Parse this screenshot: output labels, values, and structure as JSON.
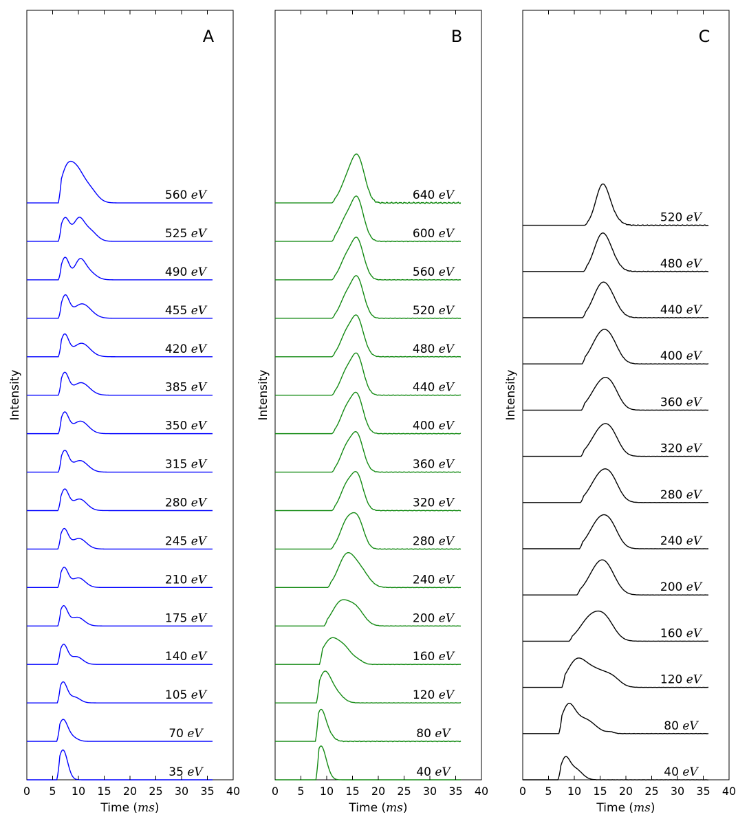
{
  "chart_data": [
    {
      "panel": "A",
      "type": "line",
      "color": "#0000ff",
      "xlabel": "Time",
      "xunit": "ms",
      "ylabel": "Intensity",
      "xlim": [
        0,
        40
      ],
      "xticks": [
        0,
        5,
        10,
        15,
        20,
        25,
        30,
        35,
        40
      ],
      "trace_end": 36,
      "unit_label": "eV",
      "series": [
        {
          "name": "35",
          "onset": 5.8,
          "peaks": [
            {
              "t": 7.0,
              "a": 3.1,
              "w": 0.9
            }
          ],
          "tail": 0.0
        },
        {
          "name": "70",
          "onset": 5.8,
          "peaks": [
            {
              "t": 7.0,
              "a": 2.2,
              "w": 0.9
            },
            {
              "t": 8.8,
              "a": 0.4,
              "w": 1.0
            }
          ],
          "tail": 0.0
        },
        {
          "name": "105",
          "onset": 5.9,
          "peaks": [
            {
              "t": 7.0,
              "a": 2.1,
              "w": 0.8
            },
            {
              "t": 9.2,
              "a": 0.6,
              "w": 1.1
            }
          ],
          "tail": 0.0
        },
        {
          "name": "140",
          "onset": 5.9,
          "peaks": [
            {
              "t": 7.1,
              "a": 2.0,
              "w": 0.8
            },
            {
              "t": 9.6,
              "a": 0.8,
              "w": 1.2
            }
          ],
          "tail": 0.0
        },
        {
          "name": "175",
          "onset": 6.0,
          "peaks": [
            {
              "t": 7.1,
              "a": 2.0,
              "w": 0.8
            },
            {
              "t": 9.8,
              "a": 0.9,
              "w": 1.3
            }
          ],
          "tail": 0.0
        },
        {
          "name": "210",
          "onset": 6.0,
          "peaks": [
            {
              "t": 7.2,
              "a": 2.0,
              "w": 0.8
            },
            {
              "t": 10.0,
              "a": 1.0,
              "w": 1.3
            }
          ],
          "tail": 0.0
        },
        {
          "name": "245",
          "onset": 6.0,
          "peaks": [
            {
              "t": 7.2,
              "a": 2.0,
              "w": 0.8
            },
            {
              "t": 10.1,
              "a": 1.1,
              "w": 1.4
            }
          ],
          "tail": 0.0
        },
        {
          "name": "280",
          "onset": 6.0,
          "peaks": [
            {
              "t": 7.3,
              "a": 2.1,
              "w": 0.8
            },
            {
              "t": 10.2,
              "a": 1.2,
              "w": 1.4
            }
          ],
          "tail": 0.0
        },
        {
          "name": "315",
          "onset": 6.1,
          "peaks": [
            {
              "t": 7.3,
              "a": 2.1,
              "w": 0.8
            },
            {
              "t": 10.3,
              "a": 1.2,
              "w": 1.5
            }
          ],
          "tail": 0.0
        },
        {
          "name": "350",
          "onset": 6.1,
          "peaks": [
            {
              "t": 7.3,
              "a": 2.1,
              "w": 0.8
            },
            {
              "t": 10.4,
              "a": 1.3,
              "w": 1.5
            }
          ],
          "tail": 0.0
        },
        {
          "name": "385",
          "onset": 6.1,
          "peaks": [
            {
              "t": 7.3,
              "a": 2.2,
              "w": 0.8
            },
            {
              "t": 10.5,
              "a": 1.3,
              "w": 1.6
            }
          ],
          "tail": 0.0
        },
        {
          "name": "420",
          "onset": 6.1,
          "peaks": [
            {
              "t": 7.3,
              "a": 2.2,
              "w": 0.8
            },
            {
              "t": 10.6,
              "a": 1.4,
              "w": 1.6
            }
          ],
          "tail": 0.0
        },
        {
          "name": "455",
          "onset": 6.1,
          "peaks": [
            {
              "t": 7.4,
              "a": 2.2,
              "w": 0.8
            },
            {
              "t": 10.7,
              "a": 1.5,
              "w": 1.7
            }
          ],
          "tail": 0.0
        },
        {
          "name": "490",
          "onset": 6.1,
          "peaks": [
            {
              "t": 7.4,
              "a": 2.3,
              "w": 0.8
            },
            {
              "t": 10.2,
              "a": 1.7,
              "w": 1.0
            },
            {
              "t": 11.8,
              "a": 0.9,
              "w": 1.4
            }
          ],
          "tail": 0.0
        },
        {
          "name": "525",
          "onset": 6.1,
          "peaks": [
            {
              "t": 7.4,
              "a": 2.4,
              "w": 0.9
            },
            {
              "t": 10.0,
              "a": 2.0,
              "w": 1.0
            },
            {
              "t": 12.0,
              "a": 1.2,
              "w": 1.4
            }
          ],
          "tail": 0.0
        },
        {
          "name": "560",
          "onset": 6.1,
          "peaks": [
            {
              "t": 7.6,
              "a": 3.0,
              "w": 1.2
            },
            {
              "t": 9.6,
              "a": 2.8,
              "w": 1.3
            },
            {
              "t": 12.0,
              "a": 1.5,
              "w": 1.5
            }
          ],
          "tail": 0.0
        }
      ]
    },
    {
      "panel": "B",
      "type": "line",
      "color": "#138a13",
      "xlabel": "Time",
      "xunit": "ms",
      "ylabel": "Intensity",
      "xlim": [
        0,
        40
      ],
      "xticks": [
        0,
        5,
        10,
        15,
        20,
        25,
        30,
        35,
        40
      ],
      "trace_end": 36,
      "unit_label": "eV",
      "series": [
        {
          "name": "40",
          "onset": 7.9,
          "peaks": [
            {
              "t": 8.8,
              "a": 3.3,
              "w": 0.9
            },
            {
              "t": 10.0,
              "a": 0.6,
              "w": 0.8
            }
          ],
          "tail": 0.0
        },
        {
          "name": "80",
          "onset": 7.8,
          "peaks": [
            {
              "t": 8.8,
              "a": 3.0,
              "w": 0.9
            },
            {
              "t": 10.2,
              "a": 0.8,
              "w": 1.0
            }
          ],
          "tail": 0.04
        },
        {
          "name": "120",
          "onset": 8.0,
          "peaks": [
            {
              "t": 9.5,
              "a": 2.9,
              "w": 1.2
            },
            {
              "t": 11.6,
              "a": 1.1,
              "w": 1.4
            }
          ],
          "tail": 0.02
        },
        {
          "name": "160",
          "onset": 8.6,
          "peaks": [
            {
              "t": 11.0,
              "a": 2.7,
              "w": 1.8
            },
            {
              "t": 13.8,
              "a": 1.0,
              "w": 1.2
            },
            {
              "t": 16.0,
              "a": 0.4,
              "w": 1.0
            }
          ],
          "tail": 0.02
        },
        {
          "name": "200",
          "onset": 9.5,
          "peaks": [
            {
              "t": 12.6,
              "a": 2.3,
              "w": 1.6
            },
            {
              "t": 15.6,
              "a": 1.8,
              "w": 1.6
            }
          ],
          "tail": 0.02
        },
        {
          "name": "240",
          "onset": 10.2,
          "peaks": [
            {
              "t": 13.8,
              "a": 3.2,
              "w": 1.6
            },
            {
              "t": 16.6,
              "a": 1.6,
              "w": 1.6
            }
          ],
          "tail": 0.02
        },
        {
          "name": "280",
          "onset": 10.8,
          "peaks": [
            {
              "t": 13.9,
              "a": 2.8,
              "w": 1.3
            },
            {
              "t": 15.9,
              "a": 2.4,
              "w": 1.1
            },
            {
              "t": 17.0,
              "a": 0.6,
              "w": 1.0
            }
          ],
          "tail": 0.03
        },
        {
          "name": "320",
          "onset": 11.0,
          "peaks": [
            {
              "t": 14.0,
              "a": 2.7,
              "w": 1.3
            },
            {
              "t": 15.9,
              "a": 2.6,
              "w": 1.0
            },
            {
              "t": 17.0,
              "a": 0.8,
              "w": 1.0
            }
          ],
          "tail": 0.03
        },
        {
          "name": "360",
          "onset": 11.0,
          "peaks": [
            {
              "t": 14.0,
              "a": 2.7,
              "w": 1.3
            },
            {
              "t": 15.9,
              "a": 2.8,
              "w": 1.0
            },
            {
              "t": 17.1,
              "a": 0.8,
              "w": 1.0
            }
          ],
          "tail": 0.03
        },
        {
          "name": "400",
          "onset": 11.0,
          "peaks": [
            {
              "t": 14.0,
              "a": 2.7,
              "w": 1.3
            },
            {
              "t": 15.9,
              "a": 2.9,
              "w": 1.0
            },
            {
              "t": 17.1,
              "a": 0.8,
              "w": 1.0
            }
          ],
          "tail": 0.03
        },
        {
          "name": "440",
          "onset": 11.0,
          "peaks": [
            {
              "t": 14.0,
              "a": 2.6,
              "w": 1.3
            },
            {
              "t": 15.9,
              "a": 3.0,
              "w": 1.0
            },
            {
              "t": 17.1,
              "a": 0.9,
              "w": 1.0
            }
          ],
          "tail": 0.03
        },
        {
          "name": "480",
          "onset": 11.0,
          "peaks": [
            {
              "t": 14.0,
              "a": 2.6,
              "w": 1.3
            },
            {
              "t": 15.9,
              "a": 3.0,
              "w": 1.0
            },
            {
              "t": 17.2,
              "a": 0.9,
              "w": 1.0
            }
          ],
          "tail": 0.03
        },
        {
          "name": "520",
          "onset": 11.0,
          "peaks": [
            {
              "t": 14.0,
              "a": 2.5,
              "w": 1.3
            },
            {
              "t": 15.9,
              "a": 3.1,
              "w": 1.0
            },
            {
              "t": 17.2,
              "a": 1.0,
              "w": 1.0
            }
          ],
          "tail": 0.03
        },
        {
          "name": "560",
          "onset": 11.0,
          "peaks": [
            {
              "t": 14.0,
              "a": 2.5,
              "w": 1.3
            },
            {
              "t": 15.9,
              "a": 3.1,
              "w": 1.0
            },
            {
              "t": 17.2,
              "a": 1.0,
              "w": 1.0
            }
          ],
          "tail": 0.03
        },
        {
          "name": "600",
          "onset": 11.0,
          "peaks": [
            {
              "t": 14.0,
              "a": 2.6,
              "w": 1.4
            },
            {
              "t": 15.9,
              "a": 3.2,
              "w": 1.0
            },
            {
              "t": 17.2,
              "a": 1.0,
              "w": 1.0
            }
          ],
          "tail": 0.04
        },
        {
          "name": "640",
          "onset": 11.0,
          "peaks": [
            {
              "t": 14.2,
              "a": 2.6,
              "w": 1.4
            },
            {
              "t": 16.0,
              "a": 3.5,
              "w": 1.1
            },
            {
              "t": 17.4,
              "a": 1.0,
              "w": 1.0
            }
          ],
          "tail": 0.08
        }
      ]
    },
    {
      "panel": "C",
      "type": "line",
      "color": "#000000",
      "xlabel": "Time",
      "xunit": "ms",
      "ylabel": "Intensity",
      "xlim": [
        0,
        40
      ],
      "xticks": [
        0,
        5,
        10,
        15,
        20,
        25,
        30,
        35,
        40
      ],
      "trace_end": 36,
      "unit_label": "eV",
      "series": [
        {
          "name": "40",
          "onset": 6.8,
          "peaks": [
            {
              "t": 8.2,
              "a": 2.2,
              "w": 0.9
            },
            {
              "t": 10.2,
              "a": 1.2,
              "w": 1.3
            }
          ],
          "tail": 0.01
        },
        {
          "name": "80",
          "onset": 7.0,
          "peaks": [
            {
              "t": 8.8,
              "a": 2.9,
              "w": 1.3
            },
            {
              "t": 12.0,
              "a": 1.6,
              "w": 2.0
            },
            {
              "t": 17.0,
              "a": 0.15,
              "w": 0.7
            }
          ],
          "tail": 0.02
        },
        {
          "name": "120",
          "onset": 7.6,
          "peaks": [
            {
              "t": 10.3,
              "a": 2.6,
              "w": 1.8
            },
            {
              "t": 14.0,
              "a": 1.9,
              "w": 2.4
            },
            {
              "t": 17.5,
              "a": 0.7,
              "w": 1.5
            }
          ],
          "tail": 0.01
        },
        {
          "name": "160",
          "onset": 9.0,
          "peaks": [
            {
              "t": 13.0,
              "a": 2.4,
              "w": 2.0
            },
            {
              "t": 16.0,
              "a": 2.2,
              "w": 1.8
            }
          ],
          "tail": 0.01
        },
        {
          "name": "200",
          "onset": 10.5,
          "peaks": [
            {
              "t": 14.5,
              "a": 2.6,
              "w": 2.0
            },
            {
              "t": 16.5,
              "a": 1.9,
              "w": 1.8
            }
          ],
          "tail": 0.01
        },
        {
          "name": "240",
          "onset": 11.0,
          "peaks": [
            {
              "t": 15.0,
              "a": 3.2,
              "w": 2.0
            },
            {
              "t": 17.3,
              "a": 1.4,
              "w": 1.5
            }
          ],
          "tail": 0.01
        },
        {
          "name": "280",
          "onset": 11.2,
          "peaks": [
            {
              "t": 15.2,
              "a": 3.1,
              "w": 2.0
            },
            {
              "t": 17.4,
              "a": 1.4,
              "w": 1.5
            }
          ],
          "tail": 0.01
        },
        {
          "name": "320",
          "onset": 11.3,
          "peaks": [
            {
              "t": 15.3,
              "a": 3.0,
              "w": 2.0
            },
            {
              "t": 17.4,
              "a": 1.3,
              "w": 1.5
            }
          ],
          "tail": 0.01
        },
        {
          "name": "360",
          "onset": 11.4,
          "peaks": [
            {
              "t": 15.3,
              "a": 3.0,
              "w": 2.0
            },
            {
              "t": 17.4,
              "a": 1.3,
              "w": 1.5
            }
          ],
          "tail": 0.01
        },
        {
          "name": "400",
          "onset": 11.5,
          "peaks": [
            {
              "t": 15.3,
              "a": 3.3,
              "w": 1.9
            },
            {
              "t": 17.4,
              "a": 1.2,
              "w": 1.5
            }
          ],
          "tail": 0.02
        },
        {
          "name": "440",
          "onset": 11.6,
          "peaks": [
            {
              "t": 15.3,
              "a": 3.5,
              "w": 1.7
            },
            {
              "t": 17.4,
              "a": 1.1,
              "w": 1.5
            }
          ],
          "tail": 0.03
        },
        {
          "name": "480",
          "onset": 11.8,
          "peaks": [
            {
              "t": 15.3,
              "a": 3.9,
              "w": 1.5
            },
            {
              "t": 17.3,
              "a": 1.0,
              "w": 1.4
            }
          ],
          "tail": 0.04
        },
        {
          "name": "520",
          "onset": 12.0,
          "peaks": [
            {
              "t": 15.4,
              "a": 4.2,
              "w": 1.3
            },
            {
              "t": 17.2,
              "a": 0.9,
              "w": 1.4
            }
          ],
          "tail": 0.05
        }
      ]
    }
  ]
}
